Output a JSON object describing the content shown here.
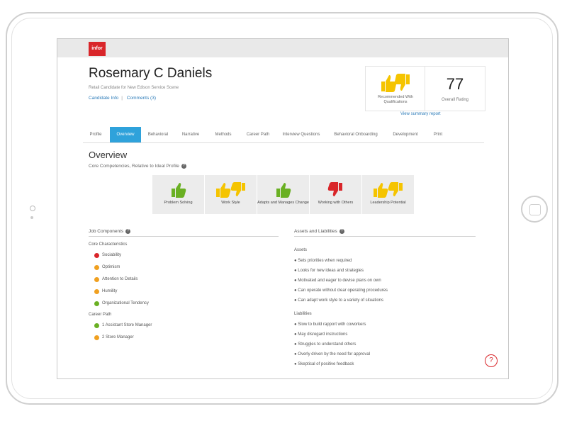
{
  "logo": "infor",
  "candidate": {
    "name": "Rosemary C Daniels",
    "subtitle": "Retail Candidate for New Edison Service Scene",
    "links": [
      "Candidate Info",
      "Comments (3)"
    ]
  },
  "recommendation": {
    "label": "Recommended With Qualifications"
  },
  "score": {
    "value": "77",
    "label": "Overall Rating"
  },
  "summary_link": "View summary report",
  "tabs": [
    "Profile",
    "Overview",
    "Behavioral",
    "Narrative",
    "Methods",
    "Career Path",
    "Interview Questions",
    "Behavioral Onboarding",
    "Development",
    "Print"
  ],
  "active_tab": "Overview",
  "overview": {
    "title": "Overview",
    "subtitle": "Core Competencies, Relative to Ideal Profile"
  },
  "competencies": [
    {
      "label": "Problem Solving",
      "rating": "thumbs-up-green"
    },
    {
      "label": "Work Style",
      "rating": "thumbs-mixed-yellow"
    },
    {
      "label": "Adapts and Manages Change",
      "rating": "thumbs-up-green"
    },
    {
      "label": "Working with Others",
      "rating": "thumbs-down-red"
    },
    {
      "label": "Leadership Potential",
      "rating": "thumbs-mixed-yellow"
    }
  ],
  "job_components": {
    "title": "Job Components",
    "group1": "Core Characteristics",
    "items": [
      {
        "label": "Sociability",
        "status": "red"
      },
      {
        "label": "Optimism",
        "status": "orange"
      },
      {
        "label": "Attention to Details",
        "status": "orange"
      },
      {
        "label": "Humility",
        "status": "orange"
      },
      {
        "label": "Organizational Tendency",
        "status": "green"
      }
    ],
    "group2": "Career Path",
    "career": [
      {
        "label": "1  Assistant Store Manager",
        "status": "green"
      },
      {
        "label": "2  Store Manager",
        "status": "orange"
      }
    ]
  },
  "assets_liabilities": {
    "title": "Assets and Liabilities",
    "assets_title": "Assets",
    "assets": [
      "Sets priorities when required",
      "Looks for new ideas and strategies",
      "Motivated and eager to devise plans on own",
      "Can operate without clear operating procedures",
      "Can adapt work style to a variety of situations"
    ],
    "liabilities_title": "Liabilities",
    "liabilities": [
      "Slow to build rapport with coworkers",
      "May disregard instructions",
      "Struggles to understand others",
      "Overly driven by the need for approval",
      "Skeptical of positive feedback"
    ]
  },
  "colors": {
    "accent": "#2fa2db",
    "red": "#d9262a",
    "orange": "#f0a020",
    "green": "#6ab023",
    "thumb_yellow": "#f5c400"
  }
}
